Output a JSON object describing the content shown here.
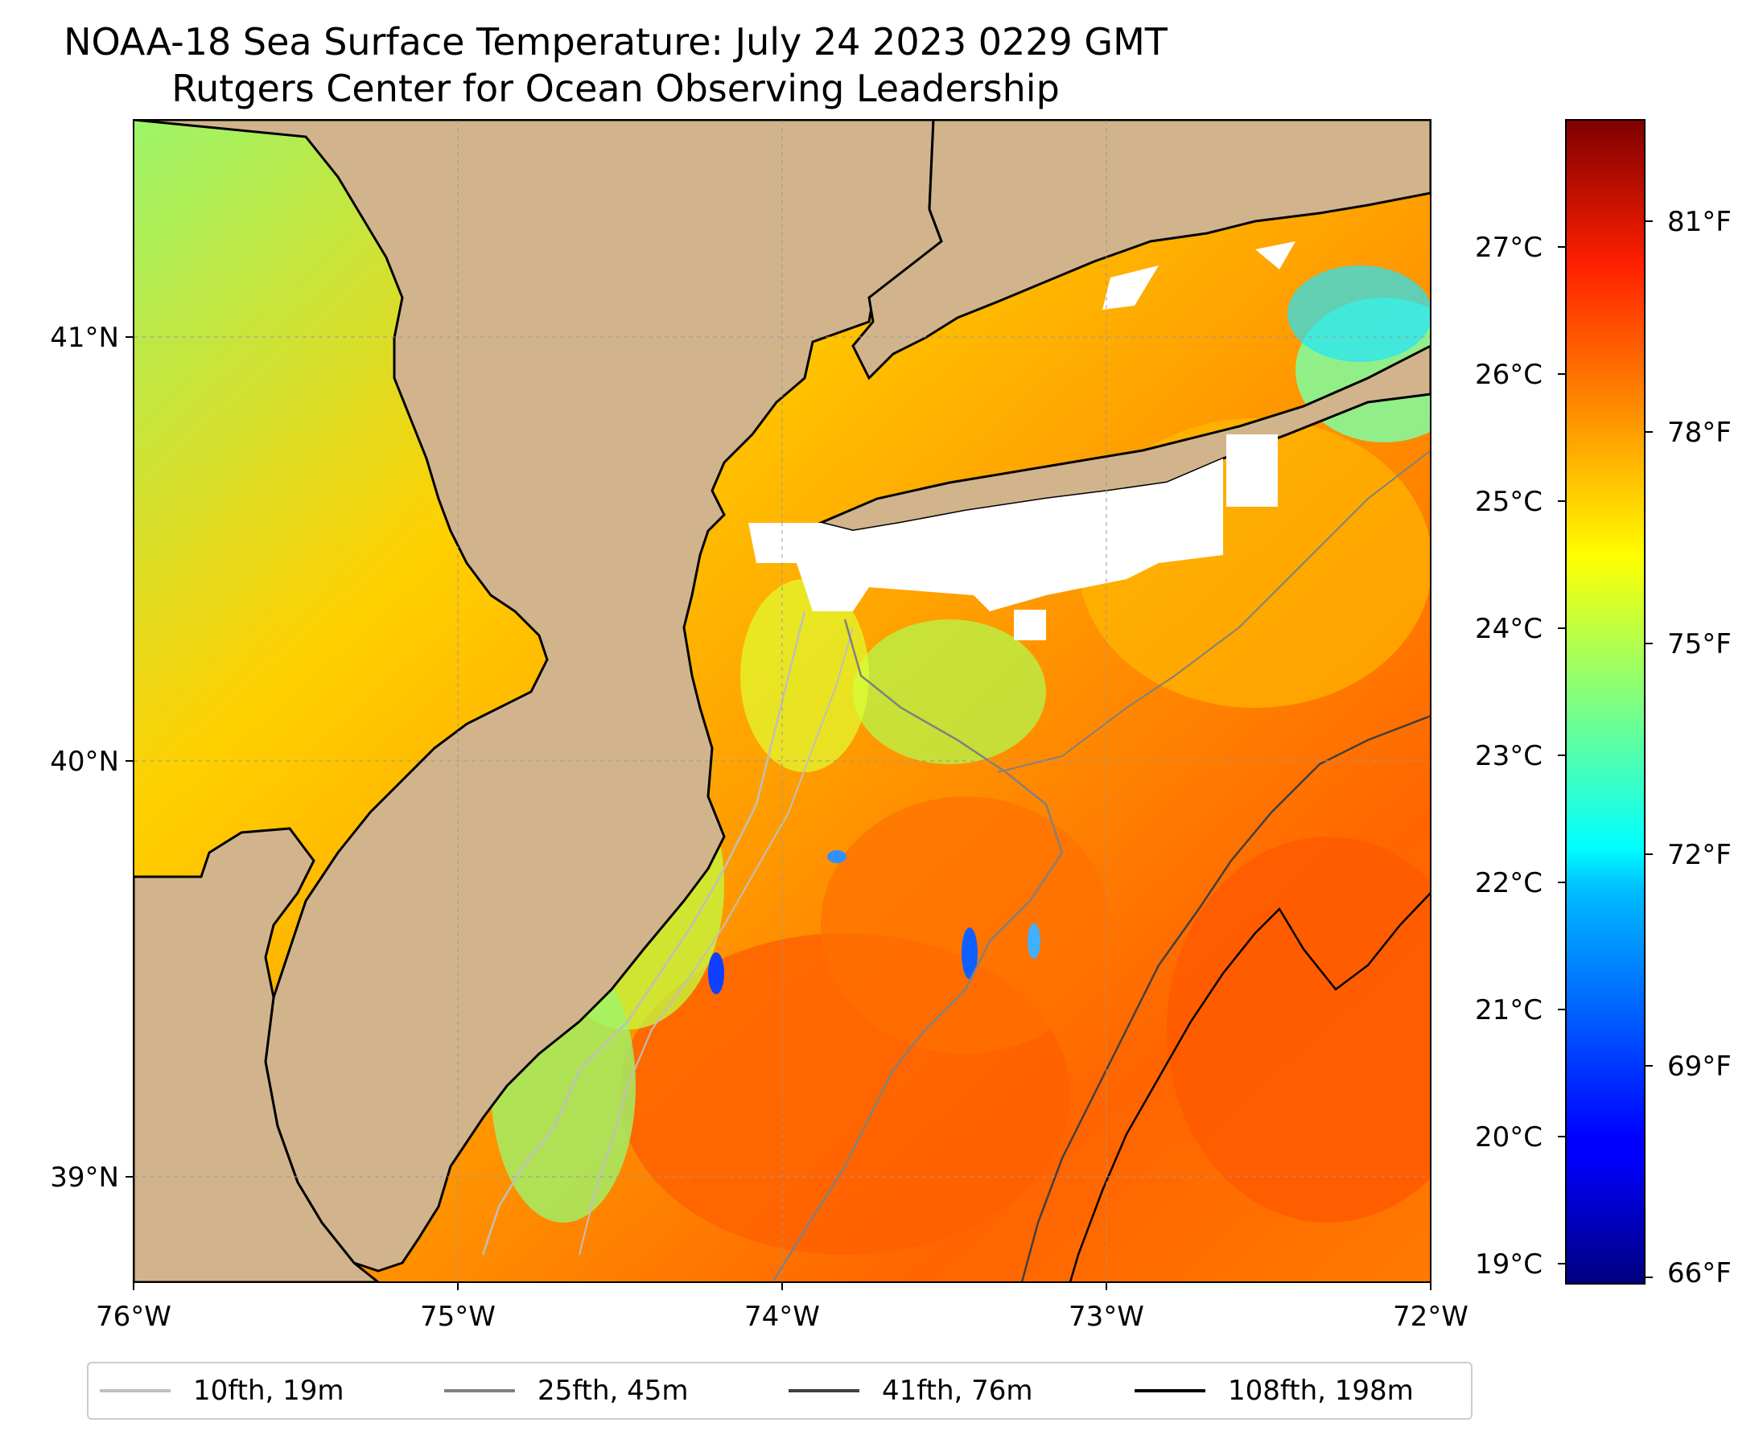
{
  "title": "NOAA-18 Sea Surface Temperature: July 24 2023 0229 GMT",
  "subtitle": "Rutgers Center for Ocean Observing Leadership",
  "map": {
    "land_color": "#d2b48c",
    "longitude_ticks": [
      "76°W",
      "75°W",
      "74°W",
      "73°W",
      "72°W"
    ],
    "latitude_ticks": [
      "41°N",
      "40°N",
      "39°N"
    ]
  },
  "colorbar": {
    "colormap": "jet",
    "celsius_ticks": [
      "27°C",
      "26°C",
      "25°C",
      "24°C",
      "23°C",
      "22°C",
      "21°C",
      "20°C",
      "19°C"
    ],
    "fahrenheit_ticks": [
      "81°F",
      "78°F",
      "75°F",
      "72°F",
      "69°F",
      "66°F"
    ]
  },
  "legend": [
    {
      "label": "10fth, 19m",
      "color": "#bfbfbf"
    },
    {
      "label": "25fth, 45m",
      "color": "#808080"
    },
    {
      "label": "41fth, 76m",
      "color": "#404040"
    },
    {
      "label": "108fth, 198m",
      "color": "#000000"
    }
  ]
}
